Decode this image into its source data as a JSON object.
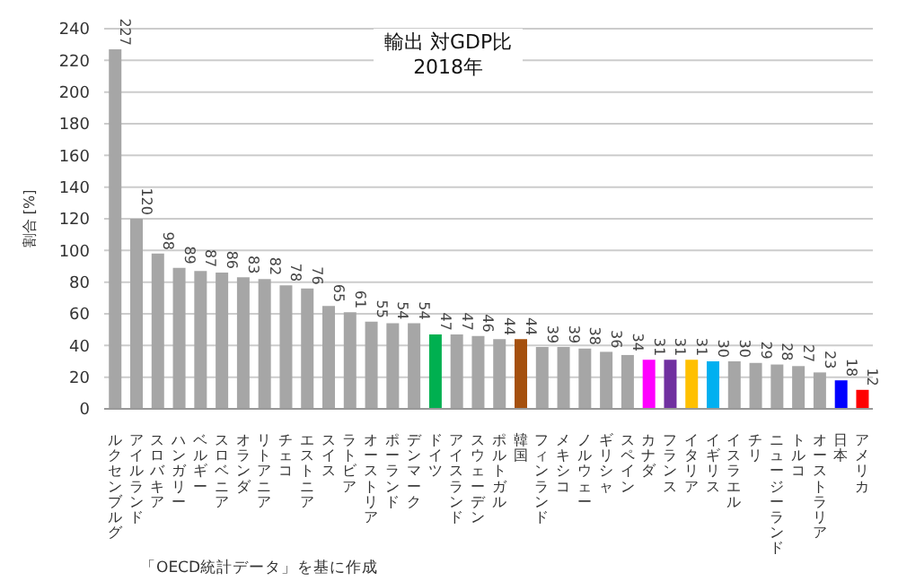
{
  "chart_data": {
    "type": "bar",
    "title": "輸出 対GDP比\n2018年",
    "ylabel": "割合 [%]",
    "categories": [
      "ルクセンブルグ",
      "アイルランド",
      "スロバキア",
      "ハンガリー",
      "ベルギー",
      "スロベニア",
      "オランダ",
      "リトアニア",
      "チェコ",
      "エストニア",
      "スイス",
      "ラトビア",
      "オーストリア",
      "ポーランド",
      "デンマーク",
      "ドイツ",
      "アイスランド",
      "スウェーデン",
      "ポルトガル",
      "韓国",
      "フィンランド",
      "メキシコ",
      "ノルウェー",
      "ギリシャ",
      "スペイン",
      "カナダ",
      "フランス",
      "イタリア",
      "イギリス",
      "イスラエル",
      "チリ",
      "ニュージーランド",
      "トルコ",
      "オーストラリア",
      "日本",
      "アメリカ"
    ],
    "values": [
      227,
      120,
      98,
      89,
      87,
      86,
      83,
      82,
      78,
      76,
      65,
      61,
      55,
      54,
      54,
      47,
      47,
      46,
      44,
      44,
      39,
      39,
      38,
      36,
      34,
      31,
      31,
      31,
      30,
      30,
      29,
      28,
      27,
      23,
      18,
      12
    ],
    "colors": [
      "#a6a6a6",
      "#a6a6a6",
      "#a6a6a6",
      "#a6a6a6",
      "#a6a6a6",
      "#a6a6a6",
      "#a6a6a6",
      "#a6a6a6",
      "#a6a6a6",
      "#a6a6a6",
      "#a6a6a6",
      "#a6a6a6",
      "#a6a6a6",
      "#a6a6a6",
      "#a6a6a6",
      "#00b050",
      "#a6a6a6",
      "#a6a6a6",
      "#a6a6a6",
      "#a5500e",
      "#a6a6a6",
      "#a6a6a6",
      "#a6a6a6",
      "#a6a6a6",
      "#a6a6a6",
      "#ff00ff",
      "#7030a0",
      "#ffc000",
      "#00b0f0",
      "#a6a6a6",
      "#a6a6a6",
      "#a6a6a6",
      "#a6a6a6",
      "#a6a6a6",
      "#0000ff",
      "#ff0000"
    ],
    "ylim": [
      0,
      240
    ],
    "yticks": [
      0,
      20,
      40,
      60,
      80,
      100,
      120,
      140,
      160,
      180,
      200,
      220,
      240
    ],
    "grid": "y",
    "data_labels": true,
    "annotations": [
      "「OECD統計データ」を基に作成"
    ]
  }
}
